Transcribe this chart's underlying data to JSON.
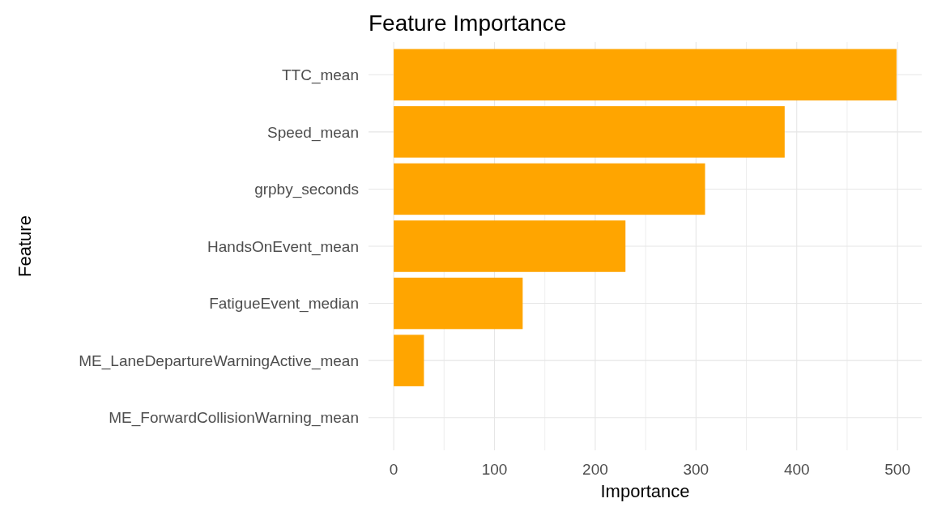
{
  "chart_data": {
    "type": "bar",
    "title": "Feature Importance",
    "xlabel": "Importance",
    "ylabel": "Feature",
    "orientation": "horizontal",
    "categories": [
      "TTC_mean",
      "Speed_mean",
      "grpby_seconds",
      "HandsOnEvent_mean",
      "FatigueEvent_median",
      "ME_LaneDepartureWarningActive_mean",
      "ME_ForwardCollisionWarning_mean"
    ],
    "values": [
      499,
      388,
      309,
      230,
      128,
      30,
      0
    ],
    "color": "#ffa500",
    "xlim": [
      -25,
      524
    ],
    "xticks": [
      0,
      {
        "value": 50,
        "label": null
      },
      100,
      {
        "value": 150,
        "label": null
      },
      200,
      {
        "value": 250,
        "label": null
      },
      300,
      {
        "value": 350,
        "label": null
      },
      400,
      {
        "value": 450,
        "label": null
      },
      500
    ],
    "grid": true
  }
}
